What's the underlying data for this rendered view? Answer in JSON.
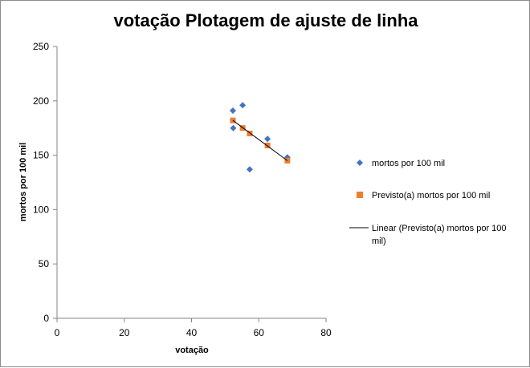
{
  "chart_data": {
    "type": "scatter",
    "title": "votação Plotagem de ajuste de linha",
    "xlabel": "votação",
    "ylabel": "mortos por 100 mil",
    "xlim": [
      0,
      80
    ],
    "ylim": [
      0,
      250
    ],
    "x_ticks": [
      0,
      20,
      40,
      60,
      80
    ],
    "y_ticks": [
      0,
      50,
      100,
      150,
      200,
      250
    ],
    "grid": false,
    "legend_position": "right",
    "series": [
      {
        "name": "mortos por 100 mil",
        "marker": "diamond",
        "color": "#4472C4",
        "points": [
          {
            "x": 52.3,
            "y": 191
          },
          {
            "x": 55.2,
            "y": 196
          },
          {
            "x": 52.4,
            "y": 175
          },
          {
            "x": 62.6,
            "y": 165
          },
          {
            "x": 57.3,
            "y": 137
          },
          {
            "x": 68.5,
            "y": 148
          }
        ]
      },
      {
        "name": "Previsto(a) mortos por 100 mil",
        "marker": "square",
        "color": "#ED7D31",
        "points": [
          {
            "x": 52.3,
            "y": 182
          },
          {
            "x": 55.2,
            "y": 175
          },
          {
            "x": 57.3,
            "y": 170
          },
          {
            "x": 62.6,
            "y": 159
          },
          {
            "x": 68.5,
            "y": 145
          }
        ]
      },
      {
        "name": "Linear (Previsto(a) mortos por 100 mil)",
        "legend_lines": [
          "Linear (Previsto(a) mortos por 100",
          "mil)"
        ],
        "type": "line",
        "color": "#000000",
        "points": [
          {
            "x": 52.3,
            "y": 182
          },
          {
            "x": 68.5,
            "y": 145
          }
        ]
      }
    ]
  }
}
